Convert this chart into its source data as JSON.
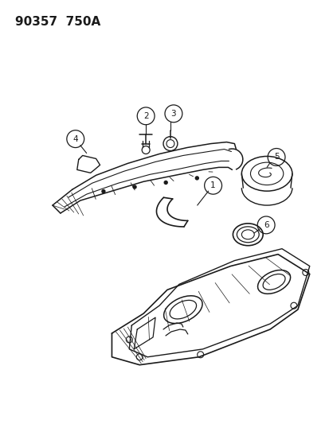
{
  "title": "90357  750A",
  "background_color": "#ffffff",
  "line_color": "#1a1a1a",
  "fig_width": 4.14,
  "fig_height": 5.33,
  "dpi": 100
}
